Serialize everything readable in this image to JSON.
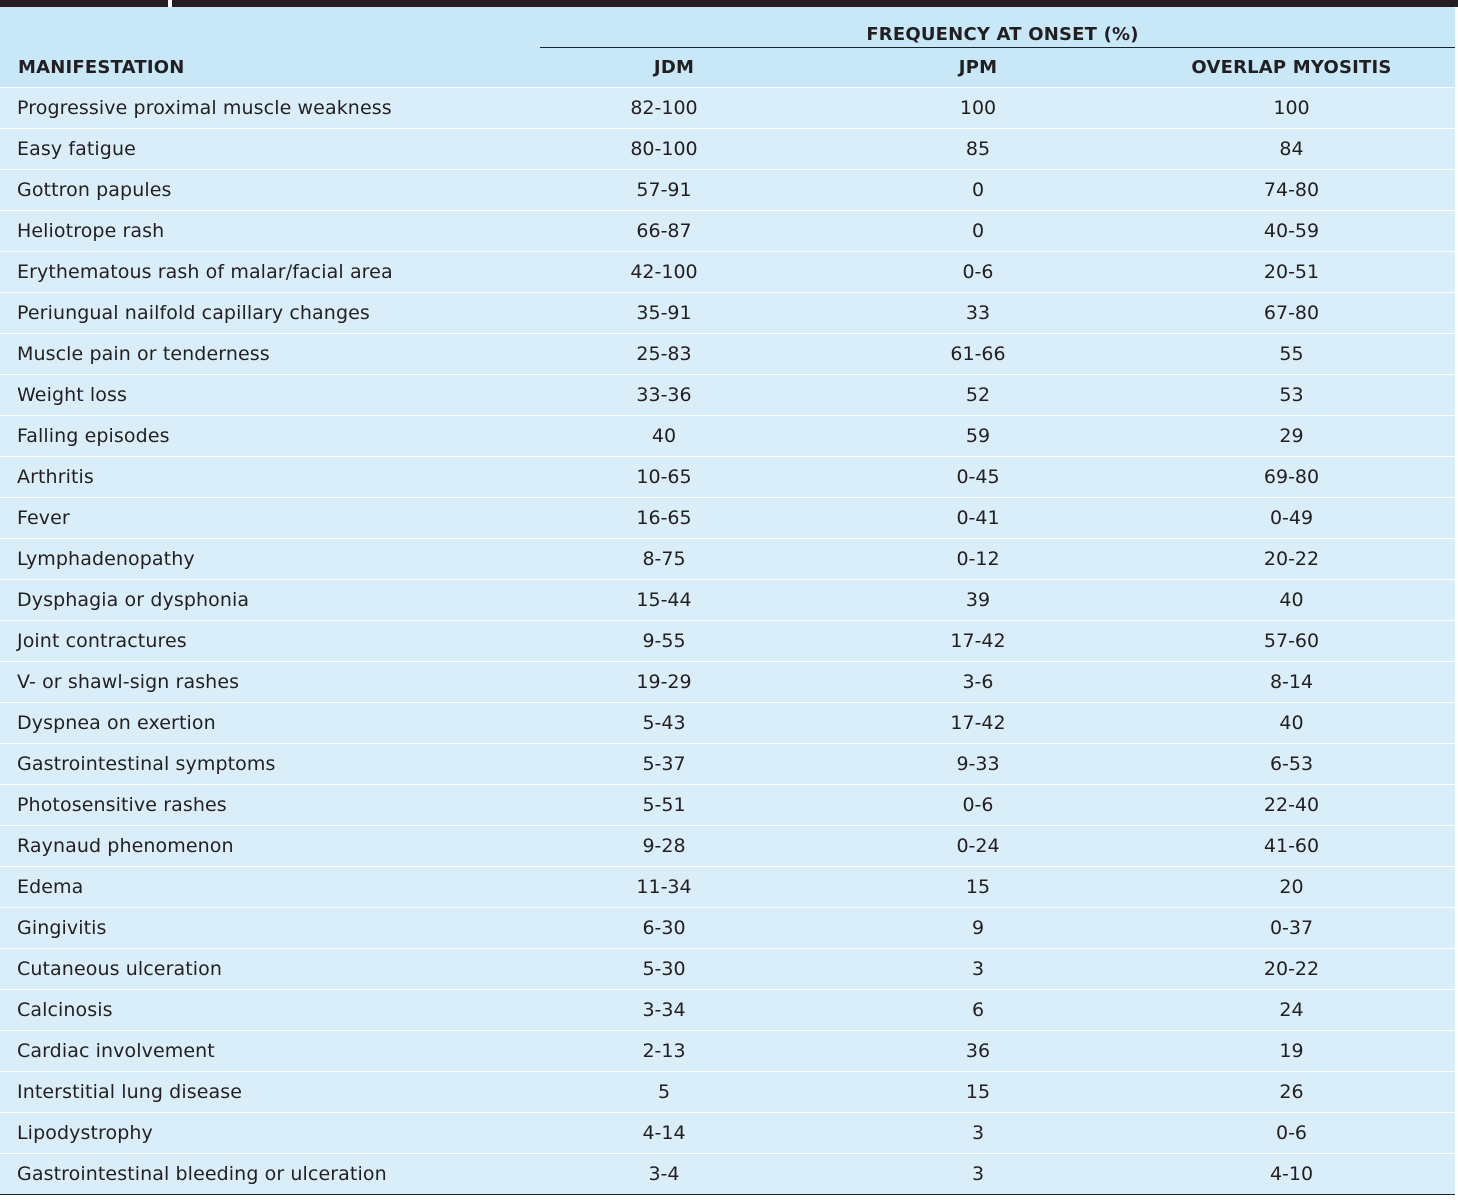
{
  "table": {
    "group_header": "FREQUENCY AT ONSET (%)",
    "columns": [
      "MANIFESTATION",
      "JDM",
      "JPM",
      "OVERLAP MYOSITIS"
    ],
    "rows": [
      [
        "Progressive proximal muscle weakness",
        "82-100",
        "100",
        "100"
      ],
      [
        "Easy fatigue",
        "80-100",
        "85",
        "84"
      ],
      [
        "Gottron papules",
        "57-91",
        "0",
        "74-80"
      ],
      [
        "Heliotrope rash",
        "66-87",
        "0",
        "40-59"
      ],
      [
        "Erythematous rash of malar/facial area",
        "42-100",
        "0-6",
        "20-51"
      ],
      [
        "Periungual nailfold capillary changes",
        "35-91",
        "33",
        "67-80"
      ],
      [
        "Muscle pain or tenderness",
        "25-83",
        "61-66",
        "55"
      ],
      [
        "Weight loss",
        "33-36",
        "52",
        "53"
      ],
      [
        "Falling episodes",
        "40",
        "59",
        "29"
      ],
      [
        "Arthritis",
        "10-65",
        "0-45",
        "69-80"
      ],
      [
        "Fever",
        "16-65",
        "0-41",
        "0-49"
      ],
      [
        "Lymphadenopathy",
        "8-75",
        "0-12",
        "20-22"
      ],
      [
        "Dysphagia or dysphonia",
        "15-44",
        "39",
        "40"
      ],
      [
        "Joint contractures",
        "9-55",
        "17-42",
        "57-60"
      ],
      [
        "V- or shawl-sign rashes",
        "19-29",
        "3-6",
        "8-14"
      ],
      [
        "Dyspnea on exertion",
        "5-43",
        "17-42",
        "40"
      ],
      [
        "Gastrointestinal symptoms",
        "5-37",
        "9-33",
        "6-53"
      ],
      [
        "Photosensitive rashes",
        "5-51",
        "0-6",
        "22-40"
      ],
      [
        "Raynaud phenomenon",
        "9-28",
        "0-24",
        "41-60"
      ],
      [
        "Edema",
        "11-34",
        "15",
        "20"
      ],
      [
        "Gingivitis",
        "6-30",
        "9",
        "0-37"
      ],
      [
        "Cutaneous ulceration",
        "5-30",
        "3",
        "20-22"
      ],
      [
        "Calcinosis",
        "3-34",
        "6",
        "24"
      ],
      [
        "Cardiac involvement",
        "2-13",
        "36",
        "19"
      ],
      [
        "Interstitial lung disease",
        "5",
        "15",
        "26"
      ],
      [
        "Lipodystrophy",
        "4-14",
        "3",
        "0-6"
      ],
      [
        "Gastrointestinal bleeding or ulceration",
        "3-4",
        "3",
        "4-10"
      ]
    ]
  },
  "colors": {
    "header_bg": "#c9e8f7",
    "row_bg": "#daeef9",
    "rule": "#231f20",
    "text": "#231f20"
  }
}
